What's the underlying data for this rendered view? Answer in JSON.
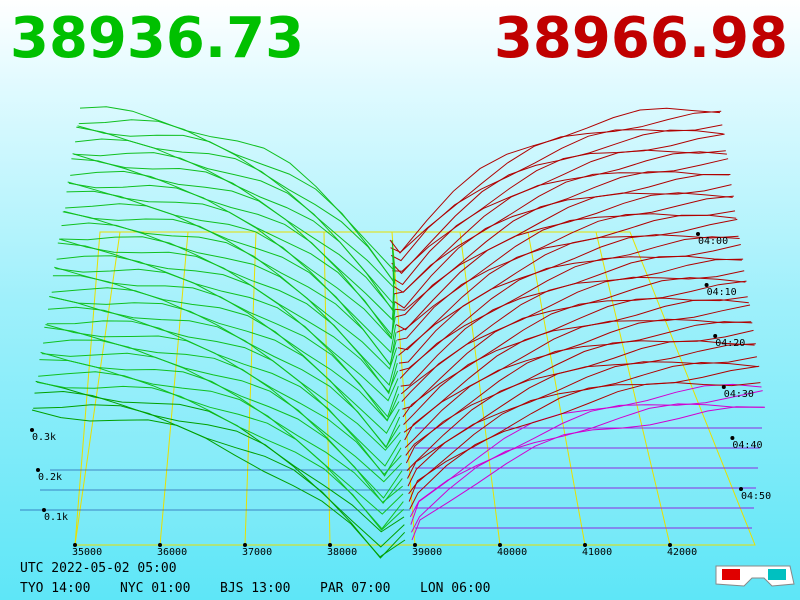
{
  "prices": {
    "bid": "38936.73",
    "ask": "38966.98"
  },
  "price_axis": [
    "35000",
    "36000",
    "37000",
    "38000",
    "39000",
    "40000",
    "41000",
    "42000"
  ],
  "depth_axis": [
    "0.3k",
    "0.2k",
    "0.1k"
  ],
  "time_axis": [
    "04:00",
    "04:10",
    "04:20",
    "04:30",
    "04:40",
    "04:50"
  ],
  "clock": {
    "utc": "UTC 2022-05-02 05:00",
    "cities": [
      "TYO 14:00",
      "NYC 01:00",
      "BJS 13:00",
      "PAR 07:00",
      "LON 06:00"
    ]
  }
}
